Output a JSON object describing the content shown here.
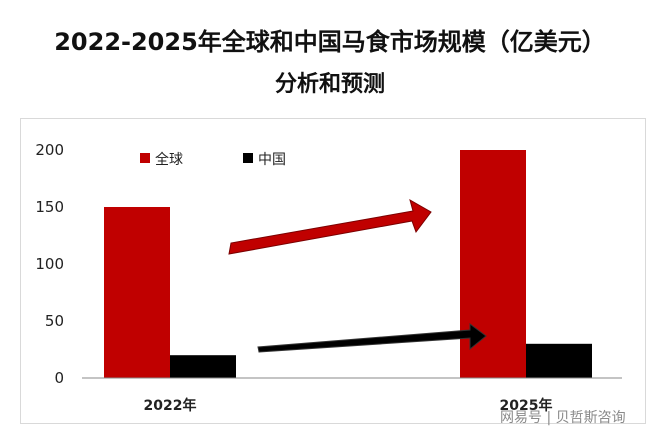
{
  "title_line1": "2022-2025年全球和中国马食市场规模（亿美元）",
  "title_line2": "分析和预测",
  "watermark": "网易号 | 贝哲斯咨询",
  "colors": {
    "global": "#c00000",
    "china": "#000000",
    "axis": "#888888"
  },
  "chart_data": {
    "type": "bar",
    "title": "2022-2025年全球和中国马食市场规模（亿美元）分析和预测",
    "categories": [
      "2022年",
      "2025年"
    ],
    "series": [
      {
        "name": "全球",
        "values": [
          150,
          200
        ]
      },
      {
        "name": "中国",
        "values": [
          20,
          30
        ]
      }
    ],
    "ylim": [
      0,
      200
    ],
    "yticks": [
      0,
      50,
      100,
      150,
      200
    ],
    "grid": false,
    "legend": "top-left",
    "annotations": [
      "red-arrow-up",
      "black-arrow-up"
    ]
  }
}
